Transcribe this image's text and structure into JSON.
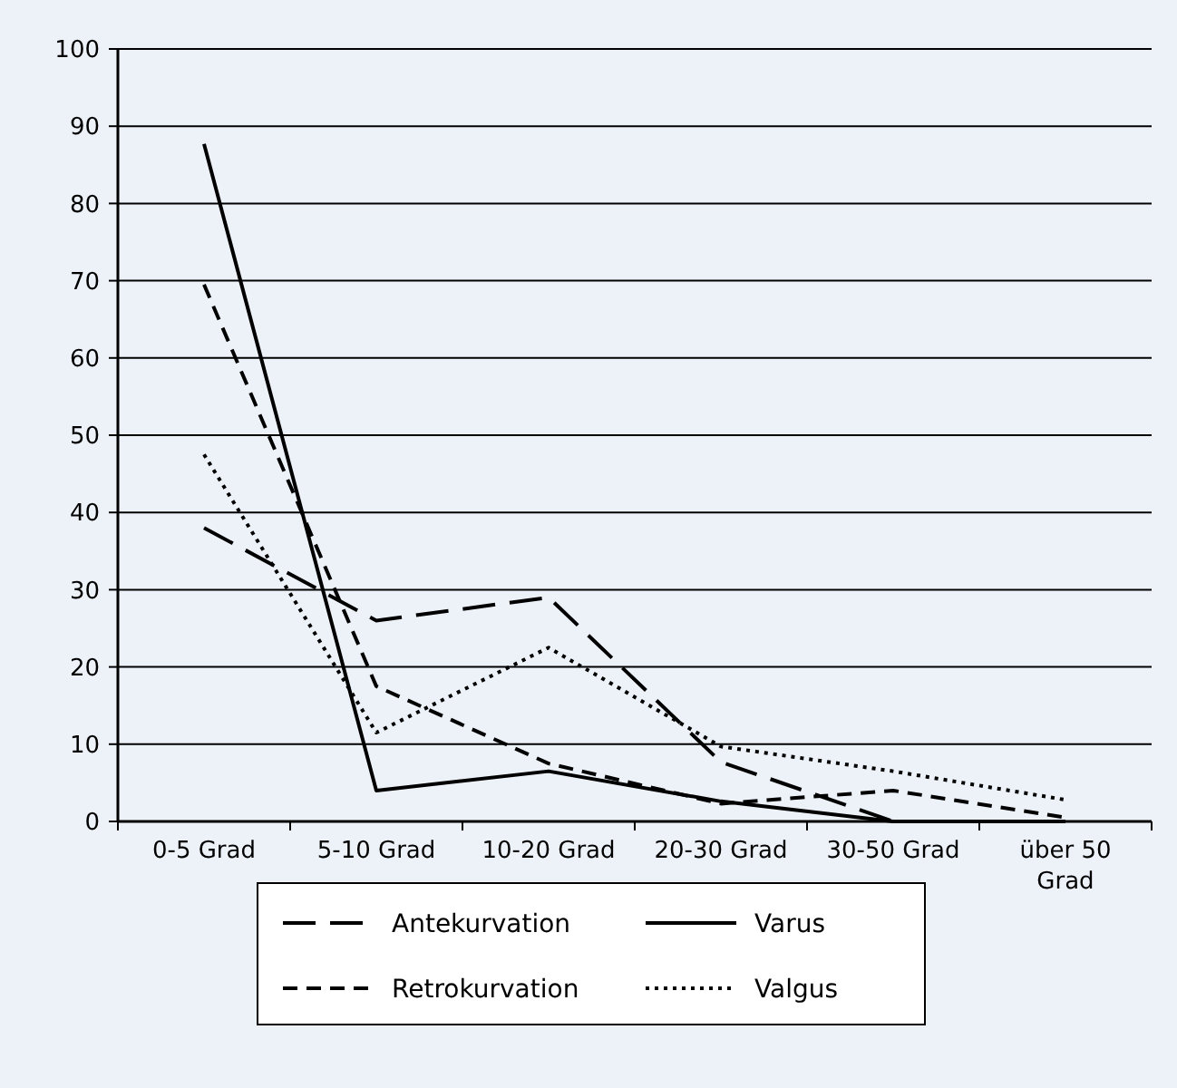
{
  "chart_data": {
    "type": "line",
    "categories": [
      "0-5 Grad",
      "5-10 Grad",
      "10-20 Grad",
      "20-30 Grad",
      "30-50 Grad",
      "über 50 Grad"
    ],
    "ylim": [
      0,
      100
    ],
    "yticks": [
      0,
      10,
      20,
      30,
      40,
      50,
      60,
      70,
      80,
      90,
      100
    ],
    "grid": "y",
    "legend": "bottom",
    "marker": "none",
    "series": [
      {
        "name": "Antekurvation",
        "color": "#000000",
        "line_style": "longdash",
        "values": [
          38,
          26,
          29,
          7.7,
          0,
          0
        ]
      },
      {
        "name": "Varus",
        "color": "#000000",
        "line_style": "solid",
        "values": [
          87.7,
          4,
          6.5,
          2.6,
          0,
          0
        ]
      },
      {
        "name": "Retrokurvation",
        "color": "#000000",
        "line_style": "dashed",
        "values": [
          69.5,
          17.5,
          7.5,
          2.3,
          4,
          0.5
        ]
      },
      {
        "name": "Valgus",
        "color": "#000000",
        "line_style": "dotted",
        "values": [
          47.5,
          11.5,
          22.5,
          9.7,
          6.5,
          2.8
        ]
      }
    ]
  }
}
